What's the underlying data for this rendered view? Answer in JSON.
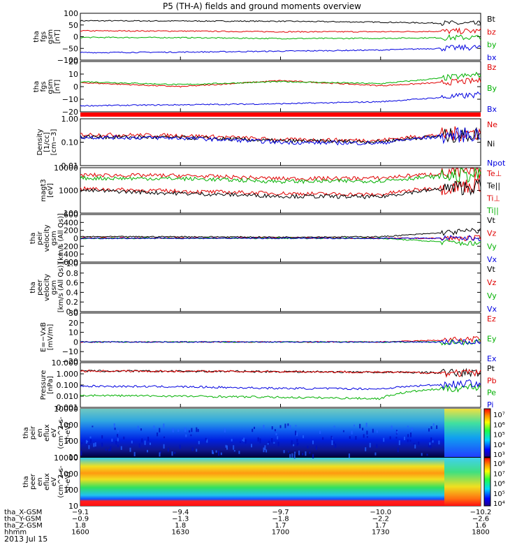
{
  "title": "P5 (TH-A) fields and ground moments overview",
  "date_label": "2013 Jul 15",
  "panels": [
    {
      "ylabel": [
        "tha",
        "fgs",
        "gsm",
        "[nT]"
      ],
      "yticks": [
        "100",
        "50",
        "0",
        "−50",
        "−100"
      ],
      "legend": [
        {
          "text": "Bt",
          "color": "#000000"
        },
        {
          "text": "bz",
          "color": "#e00000"
        },
        {
          "text": "by",
          "color": "#00b000"
        },
        {
          "text": "bx",
          "color": "#0000e0"
        }
      ]
    },
    {
      "ylabel": [
        "tha",
        "fgs",
        "gsm",
        "[nT]"
      ],
      "yticks": [
        "20",
        "10",
        "0",
        "−10",
        "−20"
      ],
      "legend": [
        {
          "text": "Bz",
          "color": "#e00000"
        },
        {
          "text": "By",
          "color": "#00b000"
        },
        {
          "text": "Bx",
          "color": "#0000e0"
        }
      ]
    },
    {
      "ylabel": [
        "Density",
        "[1/cc]",
        "[cm−3]"
      ],
      "yticks": [
        "1.00",
        "0.10",
        "0.01"
      ],
      "legend": [
        {
          "text": "Ne",
          "color": "#e00000"
        },
        {
          "text": "Ni",
          "color": "#000000"
        },
        {
          "text": "Npot",
          "color": "#0000e0"
        }
      ]
    },
    {
      "ylabel": [
        "magt3",
        "[eV]"
      ],
      "yticks": [
        "10000",
        "1000",
        "100"
      ],
      "legend": [
        {
          "text": "Te⊥",
          "color": "#e00000"
        },
        {
          "text": "Te||",
          "color": "#000000"
        },
        {
          "text": "Ti⊥",
          "color": "#e00000"
        },
        {
          "text": "Ti||",
          "color": "#00b000"
        }
      ]
    },
    {
      "ylabel": [
        "tha",
        "peir",
        "velocity",
        "gsm",
        "[km/s (All Qs)]"
      ],
      "yticks": [
        "600",
        "400",
        "200",
        "0",
        "−200",
        "−400",
        "−600"
      ],
      "legend": [
        {
          "text": "Vt",
          "color": "#000000"
        },
        {
          "text": "Vz",
          "color": "#e00000"
        },
        {
          "text": "Vy",
          "color": "#00b000"
        },
        {
          "text": "Vx",
          "color": "#0000e0"
        }
      ]
    },
    {
      "ylabel": [
        "tha",
        "peer",
        "velocity",
        "gsm",
        "[km/s (All Qs)]"
      ],
      "yticks": [
        "1.0",
        "0.8",
        "0.6",
        "0.4",
        "0.2",
        "0.0"
      ],
      "legend": [
        {
          "text": "Vt",
          "color": "#000000"
        },
        {
          "text": "Vz",
          "color": "#e00000"
        },
        {
          "text": "Vy",
          "color": "#00b000"
        },
        {
          "text": "Vx",
          "color": "#0000e0"
        }
      ]
    },
    {
      "ylabel": [
        "E=−VxB",
        "[mV/m]"
      ],
      "yticks": [
        "30",
        "20",
        "10",
        "0",
        "−10",
        "−20"
      ],
      "legend": [
        {
          "text": "Ez",
          "color": "#e00000"
        },
        {
          "text": "Ey",
          "color": "#00b000"
        },
        {
          "text": "Ex",
          "color": "#0000e0"
        }
      ]
    },
    {
      "ylabel": [
        "Pressure",
        "[nPa]"
      ],
      "yticks": [
        "10.000",
        "1.000",
        "0.100",
        "0.010",
        "0.001"
      ],
      "legend": [
        {
          "text": "Pt",
          "color": "#000000"
        },
        {
          "text": "Pb",
          "color": "#e00000"
        },
        {
          "text": "Pe",
          "color": "#00b000"
        },
        {
          "text": "Pi",
          "color": "#0000e0"
        }
      ]
    },
    {
      "ylabel": [
        "tha",
        "peir",
        "en",
        "eflux",
        "eV",
        "(cm^2-s-",
        "sr-eV)"
      ],
      "yticks": [
        "10000",
        "1000",
        "100",
        "10"
      ],
      "colorbar": [
        "10⁷",
        "10⁶",
        "10⁵",
        "10⁴",
        "10³"
      ]
    },
    {
      "ylabel": [
        "tha",
        "peer",
        "en",
        "eflux",
        "eV",
        "(cm^2-s-",
        "sr-eV)"
      ],
      "yticks": [
        "10000",
        "1000",
        "100",
        "10"
      ],
      "colorbar": [
        "10⁸",
        "10⁷",
        "10⁶",
        "10⁵",
        "10⁴"
      ]
    }
  ],
  "footer": {
    "row_labels": [
      "tha_X-GSM",
      "tha_Y-GSM",
      "tha_Z-GSM",
      "hhmm"
    ],
    "columns": [
      [
        "−9.1",
        "−0.9",
        "1.8",
        "1600"
      ],
      [
        "−9.4",
        "−1.3",
        "1.8",
        "1630"
      ],
      [
        "−9.7",
        "−1.8",
        "1.7",
        "1700"
      ],
      [
        "−10.0",
        "−2.2",
        "1.7",
        "1730"
      ],
      [
        "−10.2",
        "−2.6",
        "1.6",
        "1800"
      ]
    ]
  },
  "chart_data": {
    "type": "line",
    "x": [
      "1600",
      "1630",
      "1700",
      "1730",
      "1800"
    ],
    "xlabel": "hhmm",
    "panels": [
      {
        "series": [
          {
            "name": "Bt",
            "values": [
              68,
              67,
              66,
              62,
              55
            ]
          },
          {
            "name": "bz",
            "values": [
              25,
              24,
              21,
              21,
              24
            ]
          },
          {
            "name": "by",
            "values": [
              -3,
              -4,
              -8,
              -7,
              -3
            ]
          },
          {
            "name": "bx",
            "values": [
              -68,
              -66,
              -62,
              -57,
              -45
            ]
          }
        ]
      },
      {
        "series": [
          {
            "name": "Bz",
            "values": [
              4,
              0,
              6,
              1,
              6
            ]
          },
          {
            "name": "By",
            "values": [
              5,
              2,
              5,
              3,
              12
            ]
          },
          {
            "name": "Bx",
            "values": [
              -19,
              -18,
              -17,
              -15,
              -8
            ]
          }
        ]
      },
      {
        "ylim": [
          0.01,
          1.5
        ],
        "scale": "log",
        "series": [
          {
            "name": "Ne",
            "values": [
              0.28,
              0.25,
              0.16,
              0.15,
              0.35
            ]
          },
          {
            "name": "Ni",
            "values": [
              0.22,
              0.2,
              0.14,
              0.13,
              0.3
            ]
          },
          {
            "name": "Npot",
            "values": [
              0.21,
              0.19,
              0.12,
              0.11,
              0.3
            ]
          }
        ]
      },
      {
        "ylim": [
          100,
          12000
        ],
        "scale": "log",
        "series": [
          {
            "name": "Te⊥",
            "values": [
              1300,
              1000,
              800,
              700,
              2000
            ]
          },
          {
            "name": "Te||",
            "values": [
              1100,
              800,
              600,
              550,
              1700
            ]
          },
          {
            "name": "Ti⊥",
            "values": [
              5500,
              5200,
              3800,
              4000,
              8000
            ]
          },
          {
            "name": "Ti||",
            "values": [
              4000,
              3800,
              2800,
              3000,
              6000
            ]
          }
        ]
      },
      {
        "ylim": [
          -600,
          600
        ],
        "series": [
          {
            "name": "Vt",
            "values": [
              40,
              40,
              30,
              40,
              200
            ]
          },
          {
            "name": "Vz",
            "values": [
              10,
              5,
              10,
              0,
              0
            ]
          },
          {
            "name": "Vy",
            "values": [
              0,
              0,
              0,
              0,
              -150
            ]
          },
          {
            "name": "Vx",
            "values": [
              0,
              0,
              0,
              0,
              0
            ]
          }
        ]
      },
      {
        "ylim": [
          0,
          1
        ],
        "series": []
      },
      {
        "ylim": [
          -20,
          30
        ],
        "series": [
          {
            "name": "Ez",
            "values": [
              0,
              0,
              0,
              0,
              3
            ]
          },
          {
            "name": "Ey",
            "values": [
              0,
              0,
              0,
              0,
              0
            ]
          },
          {
            "name": "Ex",
            "values": [
              0,
              0,
              0,
              0,
              0
            ]
          }
        ]
      },
      {
        "ylim": [
          0.001,
          10
        ],
        "scale": "log",
        "series": [
          {
            "name": "Pt",
            "values": [
              1.8,
              1.7,
              1.6,
              1.4,
              1.2
            ]
          },
          {
            "name": "Pb",
            "values": [
              1.8,
              1.7,
              1.6,
              1.4,
              1.1
            ]
          },
          {
            "name": "Pe",
            "values": [
              0.012,
              0.01,
              0.008,
              0.006,
              0.07
            ]
          },
          {
            "name": "Pi",
            "values": [
              0.08,
              0.07,
              0.05,
              0.045,
              0.15
            ]
          }
        ]
      }
    ]
  }
}
